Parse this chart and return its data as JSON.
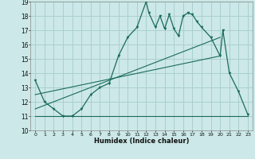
{
  "xlabel": "Humidex (Indice chaleur)",
  "bg_color": "#cce8e8",
  "grid_color": "#aacfcf",
  "line_color": "#1a6b5a",
  "xlim": [
    -0.5,
    23.5
  ],
  "ylim": [
    10,
    19
  ],
  "xticks": [
    0,
    1,
    2,
    3,
    4,
    5,
    6,
    7,
    8,
    9,
    10,
    11,
    12,
    13,
    14,
    15,
    16,
    17,
    18,
    19,
    20,
    21,
    22,
    23
  ],
  "yticks": [
    10,
    11,
    12,
    13,
    14,
    15,
    16,
    17,
    18,
    19
  ],
  "curve1_x": [
    0,
    1,
    2,
    3,
    4,
    5,
    6,
    7,
    8,
    9,
    10,
    11,
    12,
    12.3,
    13,
    13.5,
    14,
    14.5,
    15,
    15.5,
    16,
    16.5,
    17,
    17.5,
    18,
    19,
    20,
    20.3,
    21,
    22,
    23
  ],
  "curve1_y": [
    13.5,
    12.0,
    11.5,
    11.0,
    11.0,
    11.5,
    12.5,
    13.0,
    13.3,
    15.2,
    16.5,
    17.2,
    19.0,
    18.2,
    17.2,
    18.0,
    17.1,
    18.1,
    17.1,
    16.6,
    18.0,
    18.2,
    18.1,
    17.6,
    17.2,
    16.5,
    15.2,
    17.0,
    14.0,
    12.7,
    11.1
  ],
  "line1_x": [
    0,
    23
  ],
  "line1_y": [
    11.0,
    11.0
  ],
  "line2_x": [
    0,
    20
  ],
  "line2_y": [
    11.5,
    16.5
  ],
  "line3_x": [
    0,
    20
  ],
  "line3_y": [
    12.5,
    15.2
  ]
}
